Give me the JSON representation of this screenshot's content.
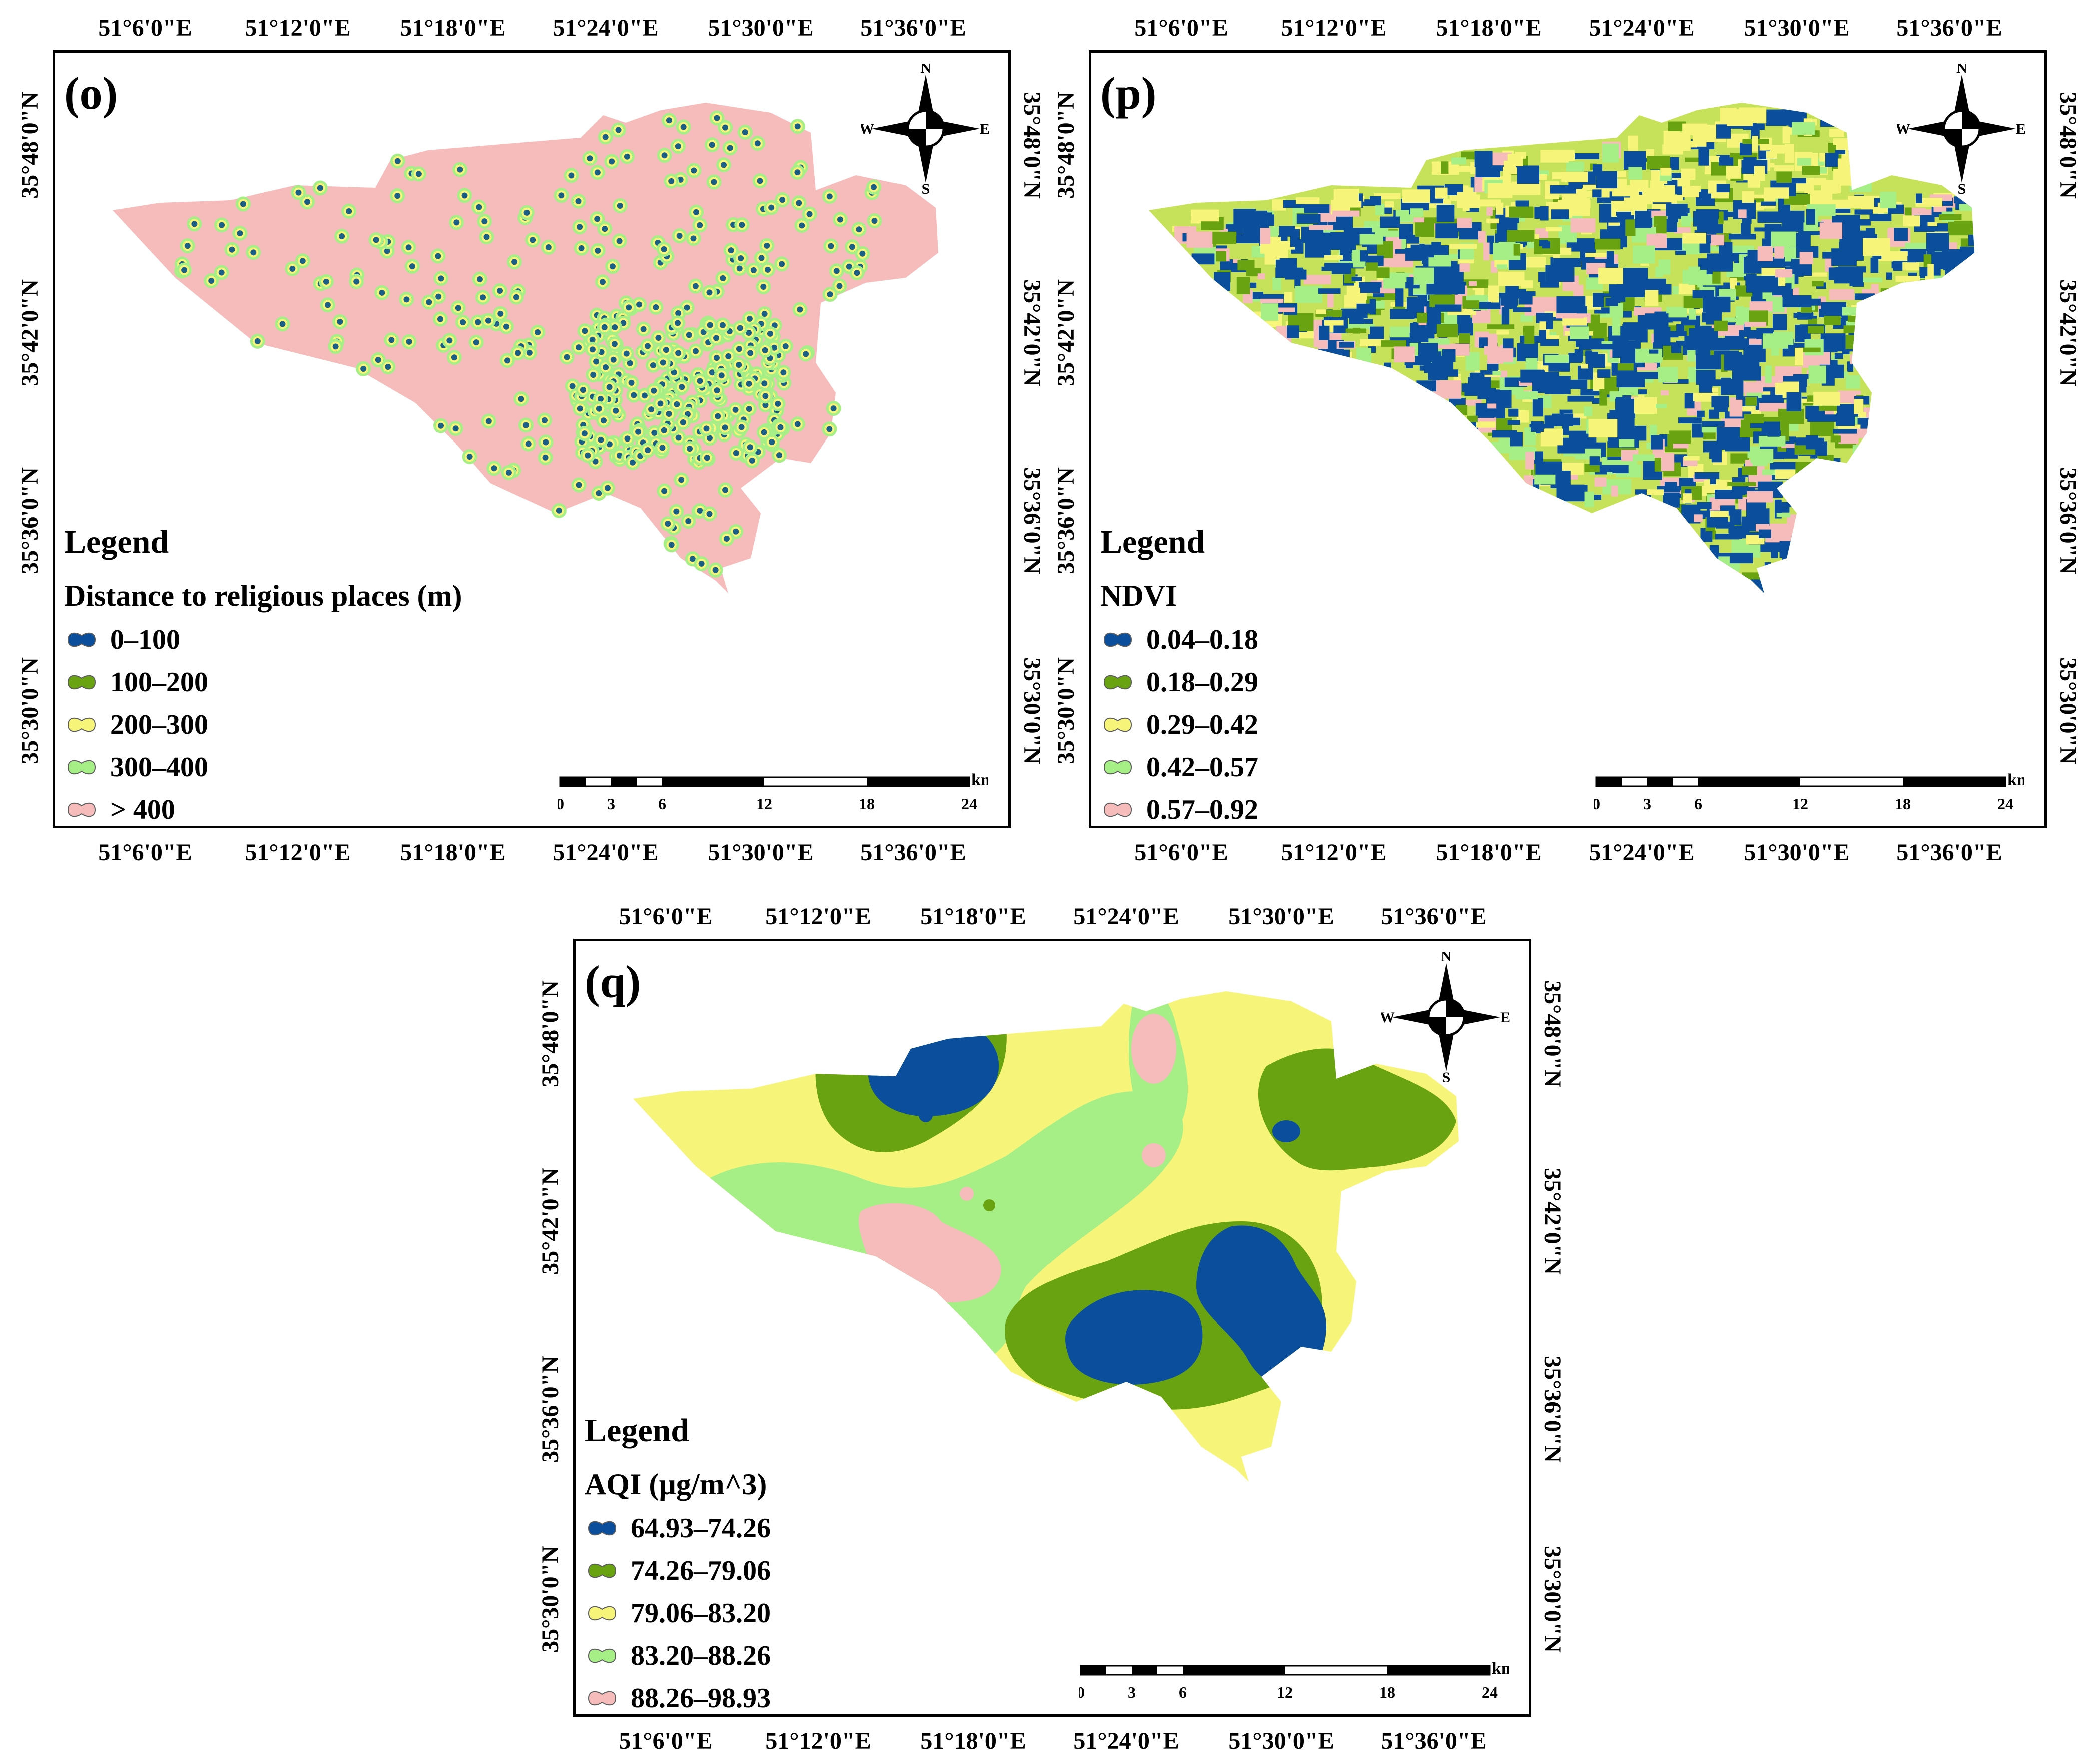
{
  "panels": {
    "o": {
      "label": "(o)",
      "legend_title": "Legend",
      "legend_subtitle": "Distance to religious places (m)",
      "classes": [
        {
          "label": "0–100",
          "color": "#0b4f9c"
        },
        {
          "label": "100–200",
          "color": "#6aa312"
        },
        {
          "label": "200–300",
          "color": "#f6f57a"
        },
        {
          "label": "300–400",
          "color": "#a6ee86"
        },
        {
          "label": "> 400",
          "color": "#f6bcbc"
        }
      ]
    },
    "p": {
      "label": "(p)",
      "legend_title": "Legend",
      "legend_subtitle": "NDVI",
      "classes": [
        {
          "label": "0.04–0.18",
          "color": "#0b4f9c"
        },
        {
          "label": "0.18–0.29",
          "color": "#6aa312"
        },
        {
          "label": "0.29–0.42",
          "color": "#f6f57a"
        },
        {
          "label": "0.42–0.57",
          "color": "#a6ee86"
        },
        {
          "label": "0.57–0.92",
          "color": "#f6bcbc"
        }
      ]
    },
    "q": {
      "label": "(q)",
      "legend_title": "Legend",
      "legend_subtitle": "AQI (µg/m^3)",
      "classes": [
        {
          "label": "64.93–74.26",
          "color": "#0b4f9c"
        },
        {
          "label": "74.26–79.06",
          "color": "#6aa312"
        },
        {
          "label": "79.06–83.20",
          "color": "#f6f57a"
        },
        {
          "label": "83.20–88.26",
          "color": "#a6ee86"
        },
        {
          "label": "88.26–98.93",
          "color": "#f6bcbc"
        }
      ]
    }
  },
  "axes": {
    "lon_ticks": [
      "51°6'0\"E",
      "51°12'0\"E",
      "51°18'0\"E",
      "51°24'0\"E",
      "51°30'0\"E",
      "51°36'0\"E"
    ],
    "lat_ticks": [
      "35°48'0\"N",
      "35°42'0\"N",
      "35°36'0\"N",
      "35°30'0\"N"
    ]
  },
  "north_arrow": {
    "n": "N",
    "s": "S",
    "e": "E",
    "w": "W"
  },
  "scale": {
    "unit": "km",
    "labels": [
      "0",
      "3",
      "6",
      "12",
      "18",
      "24"
    ]
  }
}
